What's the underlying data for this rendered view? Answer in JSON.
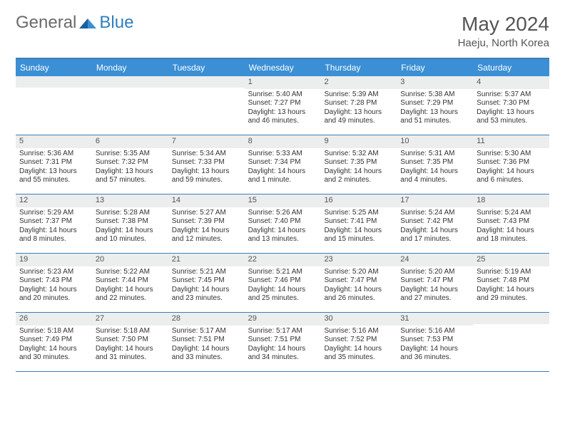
{
  "logo": {
    "general": "General",
    "blue": "Blue"
  },
  "title": "May 2024",
  "subtitle": "Haeju, North Korea",
  "colors": {
    "header_bar": "#3b8fd4",
    "border": "#3b7fb5",
    "daynum_bg": "#eceded",
    "text": "#333333",
    "title_color": "#555555"
  },
  "day_headers": [
    "Sunday",
    "Monday",
    "Tuesday",
    "Wednesday",
    "Thursday",
    "Friday",
    "Saturday"
  ],
  "weeks": [
    [
      null,
      null,
      null,
      {
        "n": "1",
        "sr": "5:40 AM",
        "ss": "7:27 PM",
        "dl": "13 hours and 46 minutes."
      },
      {
        "n": "2",
        "sr": "5:39 AM",
        "ss": "7:28 PM",
        "dl": "13 hours and 49 minutes."
      },
      {
        "n": "3",
        "sr": "5:38 AM",
        "ss": "7:29 PM",
        "dl": "13 hours and 51 minutes."
      },
      {
        "n": "4",
        "sr": "5:37 AM",
        "ss": "7:30 PM",
        "dl": "13 hours and 53 minutes."
      }
    ],
    [
      {
        "n": "5",
        "sr": "5:36 AM",
        "ss": "7:31 PM",
        "dl": "13 hours and 55 minutes."
      },
      {
        "n": "6",
        "sr": "5:35 AM",
        "ss": "7:32 PM",
        "dl": "13 hours and 57 minutes."
      },
      {
        "n": "7",
        "sr": "5:34 AM",
        "ss": "7:33 PM",
        "dl": "13 hours and 59 minutes."
      },
      {
        "n": "8",
        "sr": "5:33 AM",
        "ss": "7:34 PM",
        "dl": "14 hours and 1 minute."
      },
      {
        "n": "9",
        "sr": "5:32 AM",
        "ss": "7:35 PM",
        "dl": "14 hours and 2 minutes."
      },
      {
        "n": "10",
        "sr": "5:31 AM",
        "ss": "7:35 PM",
        "dl": "14 hours and 4 minutes."
      },
      {
        "n": "11",
        "sr": "5:30 AM",
        "ss": "7:36 PM",
        "dl": "14 hours and 6 minutes."
      }
    ],
    [
      {
        "n": "12",
        "sr": "5:29 AM",
        "ss": "7:37 PM",
        "dl": "14 hours and 8 minutes."
      },
      {
        "n": "13",
        "sr": "5:28 AM",
        "ss": "7:38 PM",
        "dl": "14 hours and 10 minutes."
      },
      {
        "n": "14",
        "sr": "5:27 AM",
        "ss": "7:39 PM",
        "dl": "14 hours and 12 minutes."
      },
      {
        "n": "15",
        "sr": "5:26 AM",
        "ss": "7:40 PM",
        "dl": "14 hours and 13 minutes."
      },
      {
        "n": "16",
        "sr": "5:25 AM",
        "ss": "7:41 PM",
        "dl": "14 hours and 15 minutes."
      },
      {
        "n": "17",
        "sr": "5:24 AM",
        "ss": "7:42 PM",
        "dl": "14 hours and 17 minutes."
      },
      {
        "n": "18",
        "sr": "5:24 AM",
        "ss": "7:43 PM",
        "dl": "14 hours and 18 minutes."
      }
    ],
    [
      {
        "n": "19",
        "sr": "5:23 AM",
        "ss": "7:43 PM",
        "dl": "14 hours and 20 minutes."
      },
      {
        "n": "20",
        "sr": "5:22 AM",
        "ss": "7:44 PM",
        "dl": "14 hours and 22 minutes."
      },
      {
        "n": "21",
        "sr": "5:21 AM",
        "ss": "7:45 PM",
        "dl": "14 hours and 23 minutes."
      },
      {
        "n": "22",
        "sr": "5:21 AM",
        "ss": "7:46 PM",
        "dl": "14 hours and 25 minutes."
      },
      {
        "n": "23",
        "sr": "5:20 AM",
        "ss": "7:47 PM",
        "dl": "14 hours and 26 minutes."
      },
      {
        "n": "24",
        "sr": "5:20 AM",
        "ss": "7:47 PM",
        "dl": "14 hours and 27 minutes."
      },
      {
        "n": "25",
        "sr": "5:19 AM",
        "ss": "7:48 PM",
        "dl": "14 hours and 29 minutes."
      }
    ],
    [
      {
        "n": "26",
        "sr": "5:18 AM",
        "ss": "7:49 PM",
        "dl": "14 hours and 30 minutes."
      },
      {
        "n": "27",
        "sr": "5:18 AM",
        "ss": "7:50 PM",
        "dl": "14 hours and 31 minutes."
      },
      {
        "n": "28",
        "sr": "5:17 AM",
        "ss": "7:51 PM",
        "dl": "14 hours and 33 minutes."
      },
      {
        "n": "29",
        "sr": "5:17 AM",
        "ss": "7:51 PM",
        "dl": "14 hours and 34 minutes."
      },
      {
        "n": "30",
        "sr": "5:16 AM",
        "ss": "7:52 PM",
        "dl": "14 hours and 35 minutes."
      },
      {
        "n": "31",
        "sr": "5:16 AM",
        "ss": "7:53 PM",
        "dl": "14 hours and 36 minutes."
      },
      null
    ]
  ],
  "labels": {
    "sunrise": "Sunrise:",
    "sunset": "Sunset:",
    "daylight": "Daylight:"
  }
}
